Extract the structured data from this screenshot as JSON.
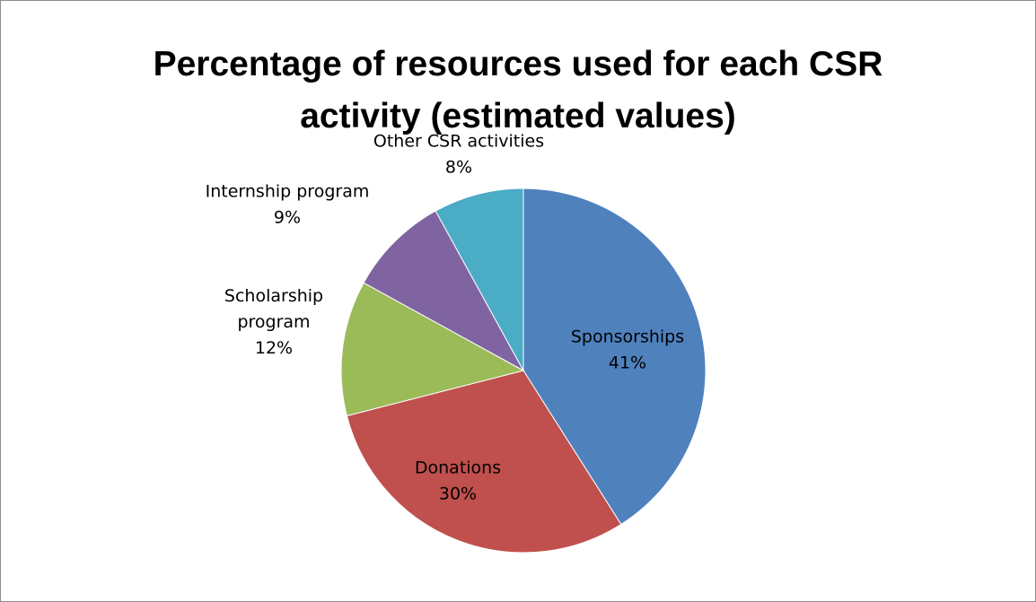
{
  "chart_data": {
    "type": "pie",
    "title": "Percentage of resources used for each CSR activity (estimated values)",
    "title_lines": [
      "Percentage of resources used for each CSR",
      "activity (estimated values)"
    ],
    "legend": "none",
    "slices": [
      {
        "label": "Sponsorships",
        "label_lines": [
          "Sponsorships"
        ],
        "value": 41,
        "value_text": "41%",
        "color": "#4F81BD",
        "label_position": "inside"
      },
      {
        "label": "Donations",
        "label_lines": [
          "Donations"
        ],
        "value": 30,
        "value_text": "30%",
        "color": "#C0504D",
        "label_position": "inside"
      },
      {
        "label": "Scholarship program",
        "label_lines": [
          "Scholarship",
          "program"
        ],
        "value": 12,
        "value_text": "12%",
        "color": "#9BBB59",
        "label_position": "outside"
      },
      {
        "label": "Internship program",
        "label_lines": [
          "Internship program"
        ],
        "value": 9,
        "value_text": "9%",
        "color": "#8064A2",
        "label_position": "outside"
      },
      {
        "label": "Other CSR activities",
        "label_lines": [
          "Other CSR activities"
        ],
        "value": 8,
        "value_text": "8%",
        "color": "#4BACC6",
        "label_position": "outside"
      }
    ]
  }
}
